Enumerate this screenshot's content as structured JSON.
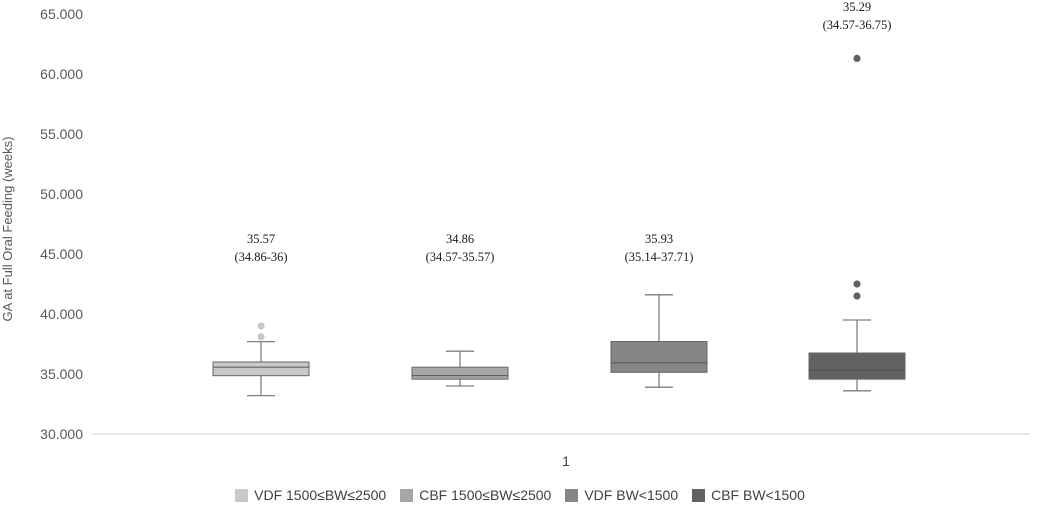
{
  "chart_data": {
    "type": "box",
    "title": "",
    "xlabel": "",
    "ylabel": "GA at Full Oral Feeding (weeks)",
    "ylim": [
      30,
      65
    ],
    "yticks": [
      "30.000",
      "35.000",
      "40.000",
      "45.000",
      "50.000",
      "55.000",
      "60.000",
      "65.000"
    ],
    "categories": [
      "1"
    ],
    "grid": false,
    "legend_position": "bottom",
    "series": [
      {
        "name": "VDF 1500≤BW≤2500",
        "color": "#c8c8c8",
        "whisker_low": 33.2,
        "q1": 34.86,
        "median": 35.57,
        "q3": 36.0,
        "whisker_high": 37.7,
        "outliers": [
          38.1,
          39.0
        ],
        "annotation": [
          "35.57",
          "(34.86-36)"
        ]
      },
      {
        "name": "CBF 1500≤BW≤2500",
        "color": "#a6a6a6",
        "whisker_low": 34.0,
        "q1": 34.57,
        "median": 34.86,
        "q3": 35.57,
        "whisker_high": 36.9,
        "outliers": [],
        "annotation": [
          "34.86",
          "(34.57-35.57)"
        ]
      },
      {
        "name": "VDF BW<1500",
        "color": "#868686",
        "whisker_low": 33.9,
        "q1": 35.14,
        "median": 35.93,
        "q3": 37.71,
        "whisker_high": 41.6,
        "outliers": [],
        "annotation": [
          "35.93",
          "(35.14-37.71)"
        ]
      },
      {
        "name": "CBF BW<1500",
        "color": "#626262",
        "whisker_low": 33.6,
        "q1": 34.57,
        "median": 35.29,
        "q3": 36.75,
        "whisker_high": 39.5,
        "outliers": [
          41.5,
          42.5,
          61.3
        ],
        "annotation": [
          "35.29",
          "(34.57-36.75)"
        ]
      }
    ]
  }
}
